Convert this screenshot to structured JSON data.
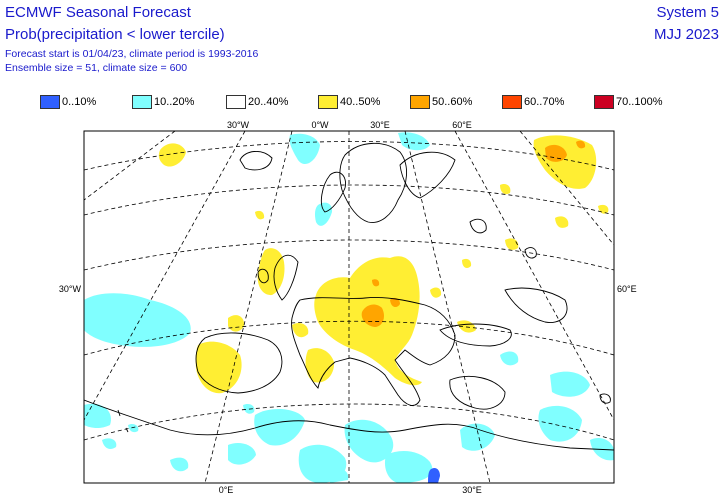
{
  "header": {
    "title": "ECMWF Seasonal Forecast",
    "subtitle": "Prob(precipitation < lower tercile)",
    "line3": "Forecast start is 01/04/23, climate period is 1993-2016",
    "line4": "Ensemble size = 51, climate size = 600",
    "system": "System 5",
    "period": "MJJ 2023"
  },
  "legend": [
    {
      "label": "0..10%",
      "color": "#3060ff"
    },
    {
      "label": "10..20%",
      "color": "#80ffff"
    },
    {
      "label": "20..40%",
      "color": "#ffffff"
    },
    {
      "label": "40..50%",
      "color": "#ffee33"
    },
    {
      "label": "50..60%",
      "color": "#ffa500"
    },
    {
      "label": "60..70%",
      "color": "#ff4500"
    },
    {
      "label": "70..100%",
      "color": "#cc0022"
    }
  ],
  "map": {
    "lon_labels_top": [
      "30°W",
      "0°W",
      "30°E",
      "60°E"
    ],
    "lat_labels": [
      "30°W",
      "60°E"
    ],
    "lon_labels_bottom": [
      "0°E",
      "30°E"
    ]
  }
}
